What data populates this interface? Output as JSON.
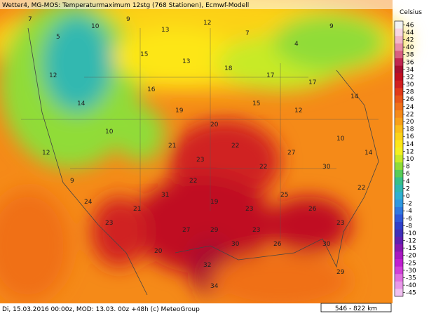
{
  "header": "Wetter4, MG-MOS: Temperaturmaximum 12stg (768 Stationen), Ecmwf-Modell",
  "footer": "Di, 15.03.2016 00:00z, MOD: 13.03. 00z +48h (c) MeteoGroup",
  "scale_bar": "546 - 822 km",
  "legend": {
    "title": "Celsius",
    "labels": [
      46,
      44,
      42,
      40,
      38,
      36,
      34,
      32,
      30,
      28,
      26,
      24,
      22,
      20,
      18,
      16,
      14,
      12,
      10,
      8,
      6,
      4,
      2,
      0,
      -2,
      -4,
      -6,
      -8,
      -10,
      -12,
      -15,
      -20,
      -25,
      -30,
      -35,
      -40,
      -45
    ],
    "colors": [
      "#f2f2f2",
      "#f7d7e2",
      "#f2b8c8",
      "#e890a8",
      "#d86080",
      "#c02850",
      "#a81030",
      "#c01020",
      "#d02020",
      "#e03a1a",
      "#e85518",
      "#f07018",
      "#f58a18",
      "#f8a018",
      "#fbbd18",
      "#fcd218",
      "#fde618",
      "#f4f020",
      "#c8ea28",
      "#90dc38",
      "#58cc58",
      "#38c088",
      "#30b8b0",
      "#30b0d0",
      "#3098e0",
      "#3078e0",
      "#3058d8",
      "#3040c8",
      "#4030b8",
      "#6020b0",
      "#8818b0",
      "#a818c0",
      "#c020d0",
      "#d040d8",
      "#e070e0",
      "#e898e8",
      "#f0c0f0"
    ]
  },
  "stations": [
    7,
    5,
    10,
    9,
    13,
    12,
    7,
    4,
    9,
    15,
    13,
    18,
    17,
    17,
    14,
    12,
    14,
    10,
    12,
    9,
    16,
    19,
    20,
    15,
    12,
    10,
    14,
    21,
    23,
    22,
    22,
    19,
    22,
    27,
    30,
    31,
    24,
    23,
    21,
    23,
    25,
    26,
    22,
    23,
    27,
    29,
    23,
    20,
    32,
    30,
    26,
    30,
    29,
    34
  ]
}
